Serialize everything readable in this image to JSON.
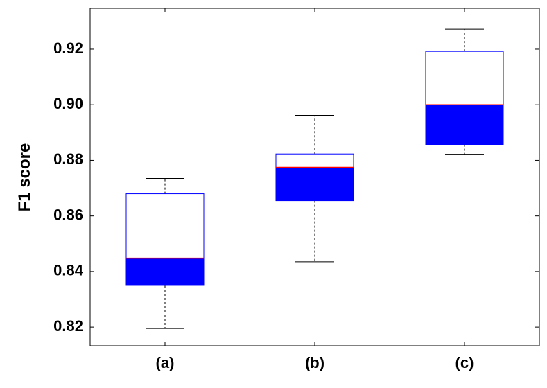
{
  "chart_data": {
    "type": "box",
    "categories": [
      "(a)",
      "(b)",
      "(c)"
    ],
    "ylabel": "F1 score",
    "xlabel": "",
    "title": "",
    "ylim": [
      0.8133,
      0.9347
    ],
    "yticks": [
      0.82,
      0.84,
      0.86,
      0.88,
      0.9,
      0.92
    ],
    "ytick_labels": [
      "0.82",
      "0.84",
      "0.86",
      "0.88",
      "0.90",
      "0.92"
    ],
    "grid": false,
    "boxes": [
      {
        "category": "(a)",
        "whisker_low": 0.8195,
        "q1": 0.835,
        "median": 0.8448,
        "q3": 0.868,
        "whisker_high": 0.8735
      },
      {
        "category": "(b)",
        "whisker_low": 0.8435,
        "q1": 0.8655,
        "median": 0.8775,
        "q3": 0.8823,
        "whisker_high": 0.8962
      },
      {
        "category": "(c)",
        "whisker_low": 0.8822,
        "q1": 0.8857,
        "median": 0.9,
        "q3": 0.9192,
        "whisker_high": 0.9272
      }
    ],
    "colors": {
      "box_edge": "#0000ff",
      "lower_fill": "#0000ff",
      "median": "#ff0000",
      "whisker": "#000000",
      "axes": "#000000"
    }
  }
}
